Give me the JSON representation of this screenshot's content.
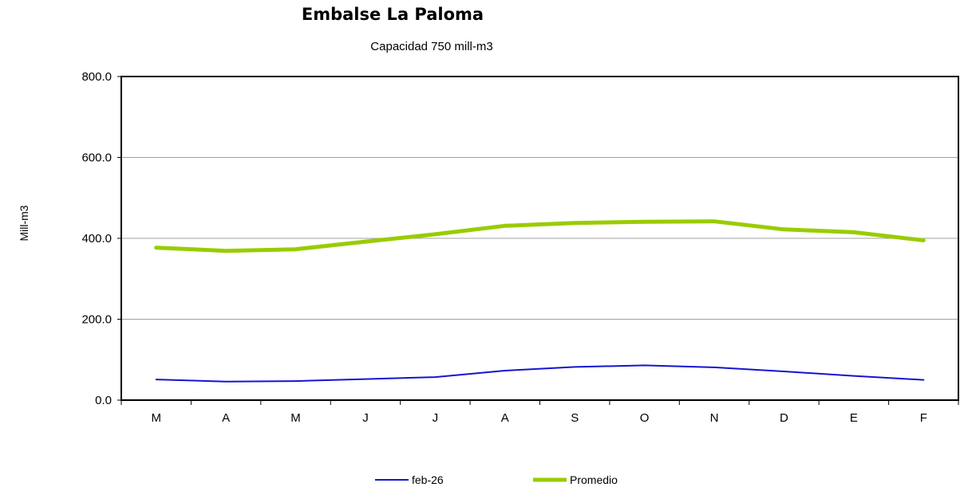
{
  "chart_data": {
    "type": "line",
    "title": "Embalse La Paloma",
    "subtitle": "Capacidad 750 mill-m3",
    "xlabel": "",
    "ylabel": "Mill-m3",
    "categories": [
      "M",
      "A",
      "M",
      "J",
      "J",
      "A",
      "S",
      "O",
      "N",
      "D",
      "E",
      "F"
    ],
    "ylim": [
      0,
      800
    ],
    "yticks": [
      "0.0",
      "200.0",
      "400.0",
      "600.0",
      "800.0"
    ],
    "grid": true,
    "legend": "bottom",
    "series": [
      {
        "name": "feb-26",
        "color": "#1414d2",
        "values": [
          51,
          46,
          47,
          52,
          57,
          73,
          82,
          86,
          81,
          71,
          60,
          50
        ]
      },
      {
        "name": "Promedio",
        "color": "#99cc00",
        "values": [
          377,
          369,
          373,
          392,
          410,
          431,
          438,
          441,
          442,
          422,
          415,
          395
        ]
      }
    ]
  }
}
